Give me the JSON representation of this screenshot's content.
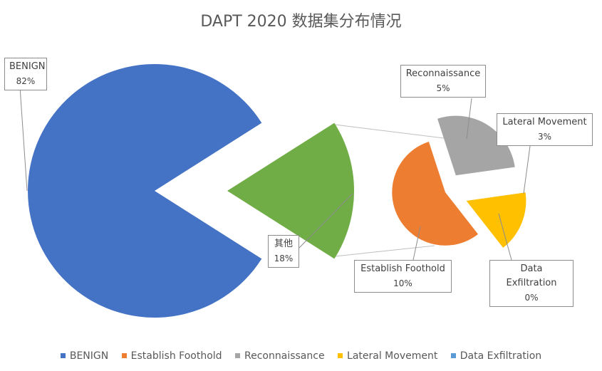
{
  "chart_data": {
    "type": "pie",
    "subtype": "bar-of-pie",
    "title": "DAPT 2020 数据集分布情况",
    "main_slices": [
      {
        "label": "BENIGN",
        "value_label": "82%",
        "value": 82,
        "color": "#4472C4"
      },
      {
        "label": "其他",
        "value_label": "18%",
        "value": 18,
        "color": "#70AD47"
      }
    ],
    "secondary_slices": [
      {
        "label": "Establish Foothold",
        "value_label": "10%",
        "value": 10,
        "color": "#ED7D31"
      },
      {
        "label": "Reconnaissance",
        "value_label": "5%",
        "value": 5,
        "color": "#A5A5A5"
      },
      {
        "label": "Lateral Movement",
        "value_label": "3%",
        "value": 3,
        "color": "#FFC000"
      },
      {
        "label": "Data Exfiltration",
        "value_label": "0%",
        "value": 0,
        "color": "#5B9BD5"
      }
    ],
    "legend": [
      {
        "label": "BENIGN",
        "color": "#4472C4"
      },
      {
        "label": "Establish Foothold",
        "color": "#ED7D31"
      },
      {
        "label": "Reconnaissance",
        "color": "#A5A5A5"
      },
      {
        "label": "Lateral Movement",
        "color": "#FFC000"
      },
      {
        "label": "Data Exfiltration",
        "color": "#5B9BD5"
      }
    ],
    "legend_position": "bottom"
  }
}
